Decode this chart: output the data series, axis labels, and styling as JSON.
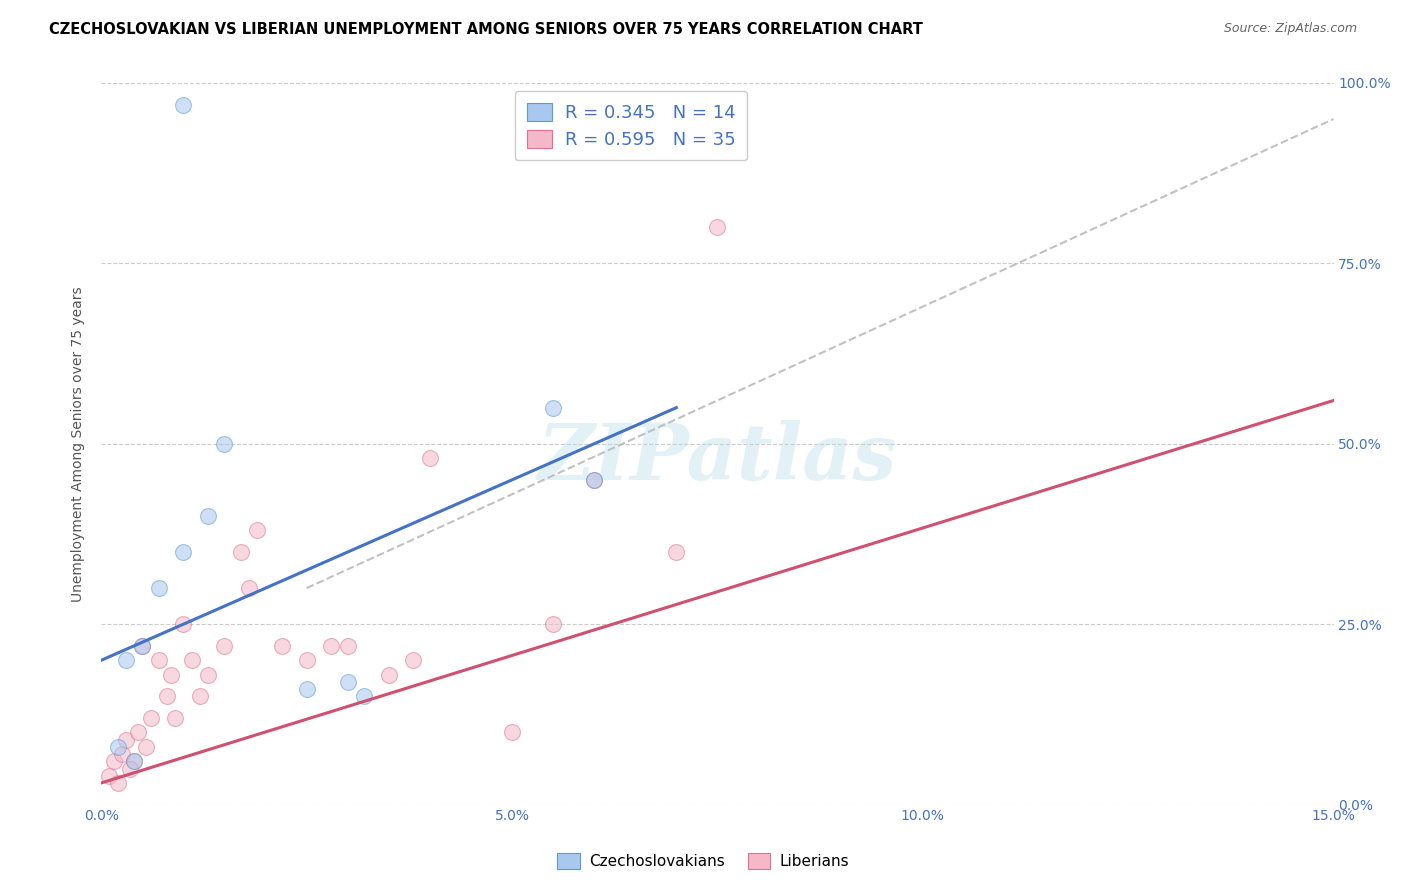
{
  "title": "CZECHOSLOVAKIAN VS LIBERIAN UNEMPLOYMENT AMONG SENIORS OVER 75 YEARS CORRELATION CHART",
  "source": "Source: ZipAtlas.com",
  "xlabel_ticks": [
    "0.0%",
    "5.0%",
    "10.0%",
    "15.0%"
  ],
  "ylabel_ticks": [
    "0.0%",
    "25.0%",
    "50.0%",
    "75.0%",
    "100.0%"
  ],
  "xlabel_tick_vals": [
    0.0,
    5.0,
    10.0,
    15.0
  ],
  "ylabel_tick_vals": [
    0.0,
    25.0,
    50.0,
    75.0,
    100.0
  ],
  "xlim": [
    0.0,
    15.0
  ],
  "ylim": [
    0.0,
    100.0
  ],
  "ylabel": "Unemployment Among Seniors over 75 years",
  "czech_color": "#a8c8f0",
  "czech_edge_color": "#5b9bd5",
  "liberian_color": "#f4b8c8",
  "liberian_edge_color": "#e07090",
  "regression_blue": "#4472c4",
  "regression_pink": "#d05070",
  "regression_gray": "#bbbbbb",
  "czech_R": 0.345,
  "czech_N": 14,
  "liberian_R": 0.595,
  "liberian_N": 35,
  "legend_text_color": "#4472c4",
  "czech_points_x": [
    1.0,
    0.3,
    0.5,
    0.7,
    1.0,
    1.3,
    1.5,
    2.5,
    3.0,
    3.2,
    5.5,
    6.0,
    0.2,
    0.4
  ],
  "czech_points_y": [
    97,
    20,
    22,
    30,
    35,
    40,
    50,
    16,
    17,
    15,
    55,
    45,
    8,
    6
  ],
  "liberian_points_x": [
    0.1,
    0.15,
    0.2,
    0.25,
    0.3,
    0.4,
    0.5,
    0.55,
    0.6,
    0.7,
    0.8,
    0.85,
    0.9,
    1.0,
    1.1,
    1.2,
    1.3,
    1.5,
    1.7,
    1.9,
    2.2,
    2.5,
    3.0,
    3.5,
    4.0,
    5.5,
    6.0,
    7.5,
    0.35,
    0.45,
    1.8,
    2.8,
    5.0,
    7.0,
    3.8
  ],
  "liberian_points_y": [
    4,
    6,
    3,
    7,
    9,
    6,
    22,
    8,
    12,
    20,
    15,
    18,
    12,
    25,
    20,
    15,
    18,
    22,
    35,
    38,
    22,
    20,
    22,
    18,
    48,
    25,
    45,
    80,
    5,
    10,
    30,
    22,
    10,
    35,
    20
  ],
  "watermark": "ZIPatlas",
  "marker_size": 130,
  "marker_alpha": 0.55,
  "blue_line_x0": 0.0,
  "blue_line_y0": 20.0,
  "blue_line_x1": 7.0,
  "blue_line_y1": 55.0,
  "pink_line_x0": 0.0,
  "pink_line_y0": 3.0,
  "pink_line_x1": 15.0,
  "pink_line_y1": 56.0,
  "gray_line_x0": 2.5,
  "gray_line_y0": 30.0,
  "gray_line_x1": 15.0,
  "gray_line_y1": 95.0
}
